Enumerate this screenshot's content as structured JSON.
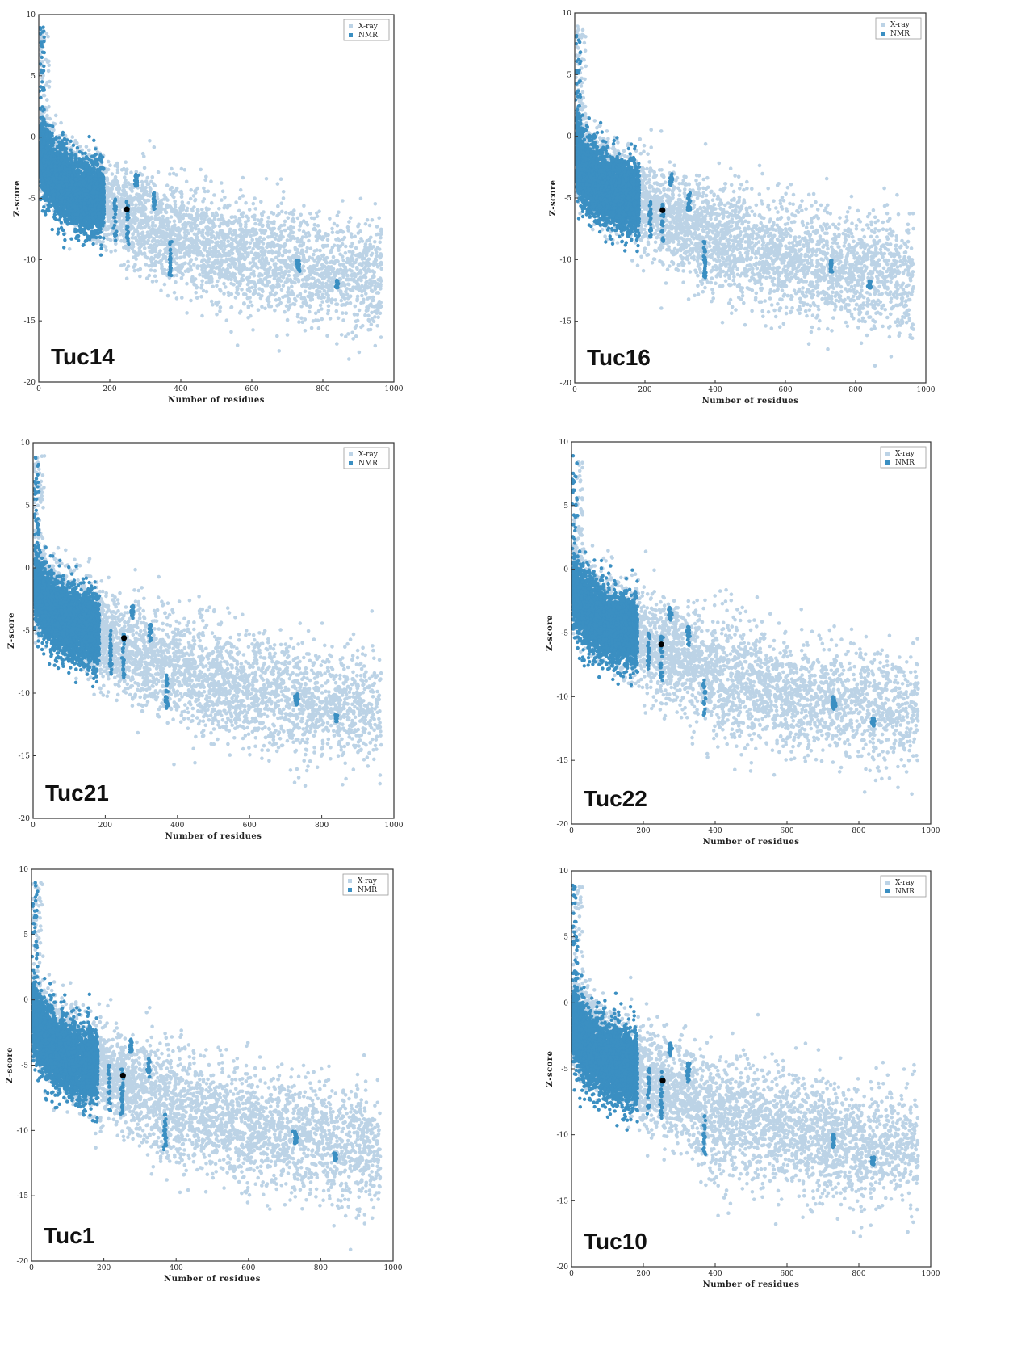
{
  "chart_data": [
    {
      "type": "scatter",
      "title": "Tuc14",
      "xlabel": "Number of residues",
      "ylabel": "Z-score",
      "xlim": [
        0,
        1000
      ],
      "ylim": [
        -20,
        10
      ],
      "xticks": [
        "0",
        "200",
        "400",
        "600",
        "800",
        "1000"
      ],
      "yticks": [
        "10",
        "5",
        "0",
        "-5",
        "-10",
        "-15",
        "-20"
      ],
      "legend": [
        "X-ray",
        "NMR"
      ],
      "legend_position": "top-right",
      "series": [
        {
          "name": "X-ray",
          "color": "#bcd3e6",
          "shape": "scatter cloud",
          "values": [
            [
              20,
              8
            ],
            [
              50,
              2
            ],
            [
              100,
              0
            ],
            [
              200,
              -3
            ],
            [
              300,
              -5
            ],
            [
              400,
              -8
            ],
            [
              500,
              -9
            ],
            [
              600,
              -10
            ],
            [
              700,
              -12
            ],
            [
              800,
              -12
            ],
            [
              900,
              -14
            ],
            [
              1000,
              -11
            ]
          ]
        },
        {
          "name": "NMR",
          "color": "#3b8fc2",
          "shape": "scatter cloud",
          "values": [
            [
              5,
              9
            ],
            [
              20,
              1
            ],
            [
              50,
              -4
            ],
            [
              100,
              -5
            ],
            [
              150,
              -5
            ],
            [
              180,
              -6
            ],
            [
              220,
              -6
            ],
            [
              250,
              -7
            ],
            [
              280,
              -3
            ],
            [
              370,
              -10
            ],
            [
              730,
              -10
            ],
            [
              840,
              -12
            ]
          ]
        },
        {
          "name": "query",
          "color": "#000000",
          "values": [
            [
              248,
              -5.9
            ]
          ]
        }
      ]
    },
    {
      "type": "scatter",
      "title": "Tuc16",
      "xlabel": "Number of residues",
      "ylabel": "Z-score",
      "xlim": [
        0,
        1000
      ],
      "ylim": [
        -20,
        10
      ],
      "xticks": [
        "0",
        "200",
        "400",
        "600",
        "800",
        "1000"
      ],
      "yticks": [
        "10",
        "5",
        "0",
        "-5",
        "-10",
        "-15",
        "-20"
      ],
      "legend": [
        "X-ray",
        "NMR"
      ],
      "legend_position": "top-right",
      "series": [
        {
          "name": "X-ray",
          "color": "#bcd3e6",
          "shape": "scatter cloud",
          "values": [
            [
              20,
              8
            ],
            [
              50,
              2
            ],
            [
              100,
              0
            ],
            [
              200,
              -3
            ],
            [
              300,
              -5
            ],
            [
              400,
              -8
            ],
            [
              500,
              -9
            ],
            [
              600,
              -10
            ],
            [
              700,
              -12
            ],
            [
              800,
              -12
            ],
            [
              900,
              -14
            ],
            [
              1000,
              -11
            ]
          ]
        },
        {
          "name": "NMR",
          "color": "#3b8fc2",
          "shape": "scatter cloud",
          "values": [
            [
              5,
              9
            ],
            [
              20,
              1
            ],
            [
              50,
              -4
            ],
            [
              100,
              -5
            ],
            [
              150,
              -5
            ],
            [
              180,
              -6
            ],
            [
              220,
              -6
            ],
            [
              250,
              -7
            ],
            [
              280,
              -3
            ],
            [
              370,
              -10
            ],
            [
              730,
              -10
            ],
            [
              840,
              -12
            ]
          ]
        },
        {
          "name": "query",
          "color": "#000000",
          "values": [
            [
              250,
              -6.0
            ]
          ]
        }
      ]
    },
    {
      "type": "scatter",
      "title": "Tuc21",
      "xlabel": "Number of residues",
      "ylabel": "Z-score",
      "xlim": [
        0,
        1000
      ],
      "ylim": [
        -20,
        10
      ],
      "xticks": [
        "0",
        "200",
        "400",
        "600",
        "800",
        "1000"
      ],
      "yticks": [
        "10",
        "5",
        "0",
        "-5",
        "-10",
        "-15",
        "-20"
      ],
      "legend": [
        "X-ray",
        "NMR"
      ],
      "legend_position": "top-right",
      "series": [
        {
          "name": "X-ray",
          "color": "#bcd3e6",
          "shape": "scatter cloud",
          "values": [
            [
              20,
              8
            ],
            [
              50,
              2
            ],
            [
              100,
              0
            ],
            [
              200,
              -3
            ],
            [
              300,
              -5
            ],
            [
              400,
              -8
            ],
            [
              500,
              -9
            ],
            [
              600,
              -10
            ],
            [
              700,
              -12
            ],
            [
              800,
              -12
            ],
            [
              900,
              -14
            ],
            [
              1000,
              -11
            ]
          ]
        },
        {
          "name": "NMR",
          "color": "#3b8fc2",
          "shape": "scatter cloud",
          "values": [
            [
              5,
              9
            ],
            [
              20,
              1
            ],
            [
              50,
              -4
            ],
            [
              100,
              -5
            ],
            [
              150,
              -5
            ],
            [
              180,
              -6
            ],
            [
              220,
              -6
            ],
            [
              250,
              -7
            ],
            [
              280,
              -3
            ],
            [
              370,
              -10
            ],
            [
              730,
              -10
            ],
            [
              840,
              -12
            ]
          ]
        },
        {
          "name": "query",
          "color": "#000000",
          "values": [
            [
              252,
              -5.6
            ]
          ]
        }
      ]
    },
    {
      "type": "scatter",
      "title": "Tuc22",
      "xlabel": "Number of residues",
      "ylabel": "Z-score",
      "xlim": [
        0,
        1000
      ],
      "ylim": [
        -20,
        10
      ],
      "xticks": [
        "0",
        "200",
        "400",
        "600",
        "800",
        "1000"
      ],
      "yticks": [
        "10",
        "5",
        "0",
        "-5",
        "-10",
        "-15",
        "-20"
      ],
      "legend": [
        "X-ray",
        "NMR"
      ],
      "legend_position": "top-right",
      "series": [
        {
          "name": "X-ray",
          "color": "#bcd3e6",
          "shape": "scatter cloud",
          "values": [
            [
              20,
              8
            ],
            [
              50,
              2
            ],
            [
              100,
              0
            ],
            [
              200,
              -3
            ],
            [
              300,
              -5
            ],
            [
              400,
              -8
            ],
            [
              500,
              -9
            ],
            [
              600,
              -10
            ],
            [
              700,
              -12
            ],
            [
              800,
              -12
            ],
            [
              900,
              -14
            ],
            [
              1000,
              -11
            ]
          ]
        },
        {
          "name": "NMR",
          "color": "#3b8fc2",
          "shape": "scatter cloud",
          "values": [
            [
              5,
              9
            ],
            [
              20,
              1
            ],
            [
              50,
              -4
            ],
            [
              100,
              -5
            ],
            [
              150,
              -5
            ],
            [
              180,
              -6
            ],
            [
              220,
              -6
            ],
            [
              250,
              -7
            ],
            [
              280,
              -3
            ],
            [
              370,
              -10
            ],
            [
              730,
              -10
            ],
            [
              840,
              -12
            ]
          ]
        },
        {
          "name": "query",
          "color": "#000000",
          "values": [
            [
              250,
              -5.9
            ]
          ]
        }
      ]
    },
    {
      "type": "scatter",
      "title": "Tuc1",
      "xlabel": "Number of residues",
      "ylabel": "Z-score",
      "xlim": [
        0,
        1000
      ],
      "ylim": [
        -20,
        10
      ],
      "xticks": [
        "0",
        "200",
        "400",
        "600",
        "800",
        "1000"
      ],
      "yticks": [
        "10",
        "5",
        "0",
        "-5",
        "-10",
        "-15",
        "-20"
      ],
      "legend": [
        "X-ray",
        "NMR"
      ],
      "legend_position": "top-right",
      "series": [
        {
          "name": "X-ray",
          "color": "#bcd3e6",
          "shape": "scatter cloud",
          "values": [
            [
              20,
              8
            ],
            [
              50,
              2
            ],
            [
              100,
              0
            ],
            [
              200,
              -3
            ],
            [
              300,
              -5
            ],
            [
              400,
              -8
            ],
            [
              500,
              -9
            ],
            [
              600,
              -10
            ],
            [
              700,
              -12
            ],
            [
              800,
              -12
            ],
            [
              900,
              -14
            ],
            [
              1000,
              -11
            ]
          ]
        },
        {
          "name": "NMR",
          "color": "#3b8fc2",
          "shape": "scatter cloud",
          "values": [
            [
              5,
              9
            ],
            [
              20,
              1
            ],
            [
              50,
              -4
            ],
            [
              100,
              -5
            ],
            [
              150,
              -5
            ],
            [
              180,
              -6
            ],
            [
              220,
              -6
            ],
            [
              250,
              -7
            ],
            [
              280,
              -3
            ],
            [
              370,
              -10
            ],
            [
              730,
              -10
            ],
            [
              840,
              -12
            ]
          ]
        },
        {
          "name": "query",
          "color": "#000000",
          "values": [
            [
              253,
              -5.8
            ]
          ]
        }
      ]
    },
    {
      "type": "scatter",
      "title": "Tuc10",
      "xlabel": "Number of residues",
      "ylabel": "Z-score",
      "xlim": [
        0,
        1000
      ],
      "ylim": [
        -20,
        10
      ],
      "xticks": [
        "0",
        "200",
        "400",
        "600",
        "800",
        "1000"
      ],
      "yticks": [
        "10",
        "5",
        "0",
        "-5",
        "-10",
        "-15",
        "-20"
      ],
      "legend": [
        "X-ray",
        "NMR"
      ],
      "legend_position": "top-right",
      "series": [
        {
          "name": "X-ray",
          "color": "#bcd3e6",
          "shape": "scatter cloud",
          "values": [
            [
              20,
              8
            ],
            [
              50,
              2
            ],
            [
              100,
              0
            ],
            [
              200,
              -3
            ],
            [
              300,
              -5
            ],
            [
              400,
              -8
            ],
            [
              500,
              -9
            ],
            [
              600,
              -10
            ],
            [
              700,
              -12
            ],
            [
              800,
              -12
            ],
            [
              900,
              -14
            ],
            [
              1000,
              -11
            ]
          ]
        },
        {
          "name": "NMR",
          "color": "#3b8fc2",
          "shape": "scatter cloud",
          "values": [
            [
              5,
              9
            ],
            [
              20,
              1
            ],
            [
              50,
              -4
            ],
            [
              100,
              -5
            ],
            [
              150,
              -5
            ],
            [
              180,
              -6
            ],
            [
              220,
              -6
            ],
            [
              250,
              -7
            ],
            [
              280,
              -3
            ],
            [
              370,
              -10
            ],
            [
              730,
              -10
            ],
            [
              840,
              -12
            ]
          ]
        },
        {
          "name": "query",
          "color": "#000000",
          "values": [
            [
              254,
              -5.9
            ]
          ]
        }
      ]
    }
  ]
}
